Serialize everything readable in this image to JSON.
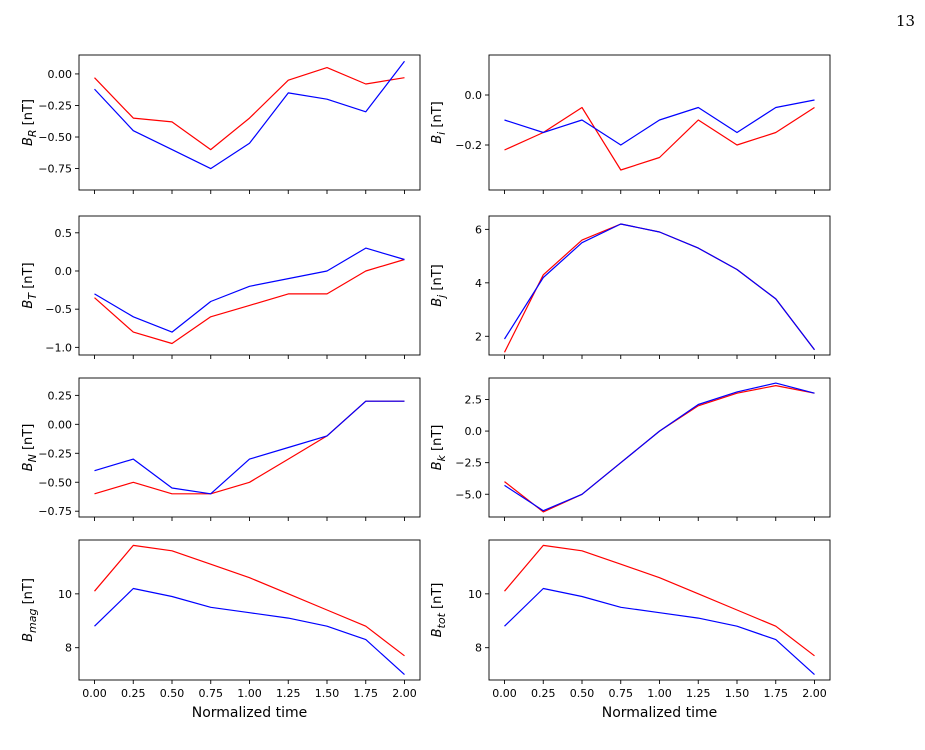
{
  "page": {
    "number": "13"
  },
  "colors": {
    "red_series": "#ff0000",
    "blue_series": "#0000ff"
  },
  "chart_data": [
    {
      "type": "line",
      "panel": "B_R",
      "ylabel": "B_R [nT]",
      "ylim": [
        -0.92,
        0.15
      ],
      "yticks": [
        0.0,
        -0.25,
        -0.5,
        -0.75
      ],
      "ytick_labels": [
        "0.00",
        "−0.25",
        "−0.50",
        "−0.75"
      ],
      "xticks": [
        0,
        0.25,
        0.5,
        0.75,
        1.0,
        1.25,
        1.5,
        1.75,
        2.0
      ],
      "series": [
        {
          "color": "red",
          "x": [
            0.0,
            0.25,
            0.5,
            0.75,
            1.0,
            1.25,
            1.5,
            1.75,
            2.0
          ],
          "y": [
            -0.03,
            -0.35,
            -0.38,
            -0.6,
            -0.35,
            -0.05,
            0.05,
            -0.08,
            -0.03
          ]
        },
        {
          "color": "blue",
          "x": [
            0.0,
            0.25,
            0.5,
            0.75,
            1.0,
            1.25,
            1.5,
            1.75,
            2.0
          ],
          "y": [
            -0.12,
            -0.45,
            -0.6,
            -0.75,
            -0.55,
            -0.15,
            -0.2,
            -0.3,
            0.1
          ]
        }
      ]
    },
    {
      "type": "line",
      "panel": "B_i",
      "ylabel": "B_i [nT]",
      "ylim": [
        -0.38,
        0.16
      ],
      "yticks": [
        0.0,
        -0.2
      ],
      "ytick_labels": [
        "0.0",
        "−0.2"
      ],
      "xticks": [
        0,
        0.25,
        0.5,
        0.75,
        1.0,
        1.25,
        1.5,
        1.75,
        2.0
      ],
      "series": [
        {
          "color": "red",
          "x": [
            0.0,
            0.25,
            0.5,
            0.75,
            1.0,
            1.25,
            1.5,
            1.75,
            2.0
          ],
          "y": [
            -0.22,
            -0.15,
            -0.05,
            -0.3,
            -0.25,
            -0.1,
            -0.2,
            -0.15,
            -0.05
          ]
        },
        {
          "color": "blue",
          "x": [
            0.0,
            0.25,
            0.5,
            0.75,
            1.0,
            1.25,
            1.5,
            1.75,
            2.0
          ],
          "y": [
            -0.1,
            -0.15,
            -0.1,
            -0.2,
            -0.1,
            -0.05,
            -0.15,
            -0.05,
            -0.02
          ]
        }
      ]
    },
    {
      "type": "line",
      "panel": "B_T",
      "ylabel": "B_T [nT]",
      "ylim": [
        -1.1,
        0.72
      ],
      "yticks": [
        0.5,
        0.0,
        -0.5,
        -1.0
      ],
      "ytick_labels": [
        "0.5",
        "0.0",
        "−0.5",
        "−1.0"
      ],
      "xticks": [
        0,
        0.25,
        0.5,
        0.75,
        1.0,
        1.25,
        1.5,
        1.75,
        2.0
      ],
      "series": [
        {
          "color": "red",
          "x": [
            0.0,
            0.25,
            0.5,
            0.75,
            1.0,
            1.25,
            1.5,
            1.75,
            2.0
          ],
          "y": [
            -0.35,
            -0.8,
            -0.95,
            -0.6,
            -0.45,
            -0.3,
            -0.3,
            0.0,
            0.15
          ]
        },
        {
          "color": "blue",
          "x": [
            0.0,
            0.25,
            0.5,
            0.75,
            1.0,
            1.25,
            1.5,
            1.75,
            2.0
          ],
          "y": [
            -0.3,
            -0.6,
            -0.8,
            -0.4,
            -0.2,
            -0.1,
            0.0,
            0.3,
            0.15
          ]
        }
      ]
    },
    {
      "type": "line",
      "panel": "B_j",
      "ylabel": "B_j [nT]",
      "ylim": [
        1.3,
        6.5
      ],
      "yticks": [
        6,
        4,
        2
      ],
      "ytick_labels": [
        "6",
        "4",
        "2"
      ],
      "xticks": [
        0,
        0.25,
        0.5,
        0.75,
        1.0,
        1.25,
        1.5,
        1.75,
        2.0
      ],
      "series": [
        {
          "color": "red",
          "x": [
            0.0,
            0.25,
            0.5,
            0.75,
            1.0,
            1.25,
            1.5,
            1.75,
            2.0
          ],
          "y": [
            1.4,
            4.3,
            5.6,
            6.2,
            5.9,
            5.3,
            4.5,
            3.4,
            1.5
          ]
        },
        {
          "color": "blue",
          "x": [
            0.0,
            0.25,
            0.5,
            0.75,
            1.0,
            1.25,
            1.5,
            1.75,
            2.0
          ],
          "y": [
            1.9,
            4.2,
            5.5,
            6.2,
            5.9,
            5.3,
            4.5,
            3.4,
            1.5
          ]
        }
      ]
    },
    {
      "type": "line",
      "panel": "B_N",
      "ylabel": "B_N [nT]",
      "ylim": [
        -0.8,
        0.4
      ],
      "yticks": [
        0.25,
        0.0,
        -0.25,
        -0.5,
        -0.75
      ],
      "ytick_labels": [
        "0.25",
        "0.00",
        "−0.25",
        "−0.50",
        "−0.75"
      ],
      "xticks": [
        0,
        0.25,
        0.5,
        0.75,
        1.0,
        1.25,
        1.5,
        1.75,
        2.0
      ],
      "series": [
        {
          "color": "red",
          "x": [
            0.0,
            0.25,
            0.5,
            0.75,
            1.0,
            1.25,
            1.5,
            1.75,
            2.0
          ],
          "y": [
            -0.6,
            -0.5,
            -0.6,
            -0.6,
            -0.5,
            -0.3,
            -0.1,
            0.2,
            0.2
          ]
        },
        {
          "color": "blue",
          "x": [
            0.0,
            0.25,
            0.5,
            0.75,
            1.0,
            1.25,
            1.5,
            1.75,
            2.0
          ],
          "y": [
            -0.4,
            -0.3,
            -0.55,
            -0.6,
            -0.3,
            -0.2,
            -0.1,
            0.2,
            0.2
          ]
        }
      ]
    },
    {
      "type": "line",
      "panel": "B_k",
      "ylabel": "B_k [nT]",
      "ylim": [
        -6.8,
        4.2
      ],
      "yticks": [
        2.5,
        0.0,
        -2.5,
        -5.0
      ],
      "ytick_labels": [
        "2.5",
        "0.0",
        "−2.5",
        "−5.0"
      ],
      "xticks": [
        0,
        0.25,
        0.5,
        0.75,
        1.0,
        1.25,
        1.5,
        1.75,
        2.0
      ],
      "series": [
        {
          "color": "red",
          "x": [
            0.0,
            0.25,
            0.5,
            0.75,
            1.0,
            1.25,
            1.5,
            1.75,
            2.0
          ],
          "y": [
            -4.0,
            -6.4,
            -5.0,
            -2.5,
            0.0,
            2.0,
            3.0,
            3.6,
            3.0
          ]
        },
        {
          "color": "blue",
          "x": [
            0.0,
            0.25,
            0.5,
            0.75,
            1.0,
            1.25,
            1.5,
            1.75,
            2.0
          ],
          "y": [
            -4.3,
            -6.3,
            -5.0,
            -2.5,
            0.0,
            2.1,
            3.1,
            3.8,
            3.0
          ]
        }
      ]
    },
    {
      "type": "line",
      "panel": "B_mag",
      "ylabel": "B_mag [nT]",
      "ylim": [
        6.8,
        12.0
      ],
      "yticks": [
        10,
        8
      ],
      "ytick_labels": [
        "10",
        "8"
      ],
      "xticks": [
        0,
        0.25,
        0.5,
        0.75,
        1.0,
        1.25,
        1.5,
        1.75,
        2.0
      ],
      "xtick_labels": [
        "0.00",
        "0.25",
        "0.50",
        "0.75",
        "1.00",
        "1.25",
        "1.50",
        "1.75",
        "2.00"
      ],
      "xlabel": "Normalized time",
      "series": [
        {
          "color": "red",
          "x": [
            0.0,
            0.25,
            0.5,
            0.75,
            1.0,
            1.25,
            1.5,
            1.75,
            2.0
          ],
          "y": [
            10.1,
            11.8,
            11.6,
            11.1,
            10.6,
            10.0,
            9.4,
            8.8,
            7.7
          ]
        },
        {
          "color": "blue",
          "x": [
            0.0,
            0.25,
            0.5,
            0.75,
            1.0,
            1.25,
            1.5,
            1.75,
            2.0
          ],
          "y": [
            8.8,
            10.2,
            9.9,
            9.5,
            9.3,
            9.1,
            8.8,
            8.3,
            7.0
          ]
        }
      ]
    },
    {
      "type": "line",
      "panel": "B_tot",
      "ylabel": "B_tot [nT]",
      "ylim": [
        6.8,
        12.0
      ],
      "yticks": [
        10,
        8
      ],
      "ytick_labels": [
        "10",
        "8"
      ],
      "xticks": [
        0,
        0.25,
        0.5,
        0.75,
        1.0,
        1.25,
        1.5,
        1.75,
        2.0
      ],
      "xtick_labels": [
        "0.00",
        "0.25",
        "0.50",
        "0.75",
        "1.00",
        "1.25",
        "1.50",
        "1.75",
        "2.00"
      ],
      "xlabel": "Normalized time",
      "series": [
        {
          "color": "red",
          "x": [
            0.0,
            0.25,
            0.5,
            0.75,
            1.0,
            1.25,
            1.5,
            1.75,
            2.0
          ],
          "y": [
            10.1,
            11.8,
            11.6,
            11.1,
            10.6,
            10.0,
            9.4,
            8.8,
            7.7
          ]
        },
        {
          "color": "blue",
          "x": [
            0.0,
            0.25,
            0.5,
            0.75,
            1.0,
            1.25,
            1.5,
            1.75,
            2.0
          ],
          "y": [
            8.8,
            10.2,
            9.9,
            9.5,
            9.3,
            9.1,
            8.8,
            8.3,
            7.0
          ]
        }
      ]
    }
  ]
}
